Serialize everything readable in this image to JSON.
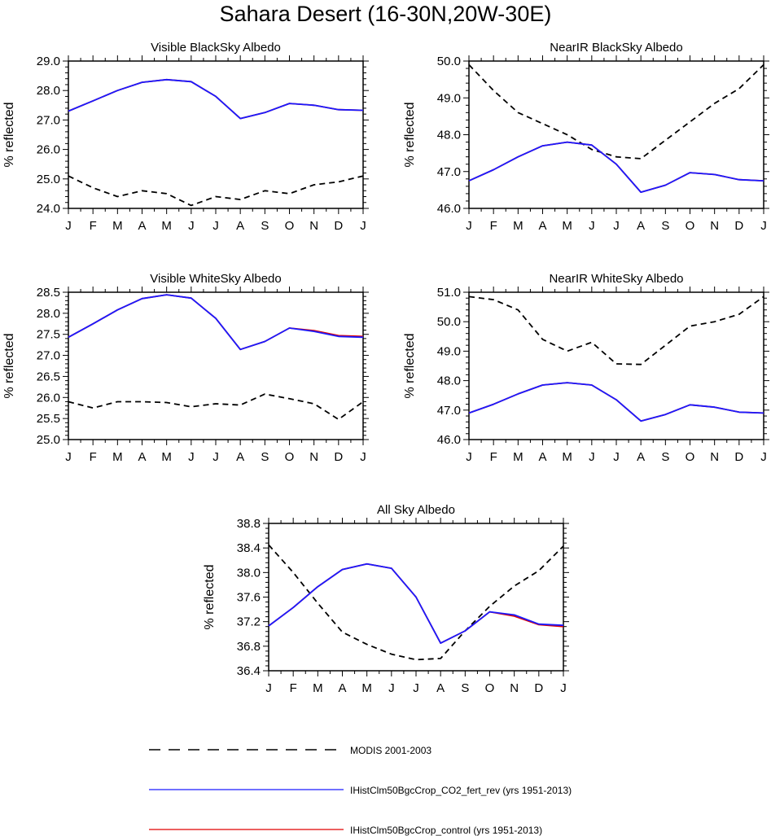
{
  "title": "Sahara Desert (16-30N,20W-30E)",
  "month_labels": [
    "J",
    "F",
    "M",
    "A",
    "M",
    "J",
    "J",
    "A",
    "S",
    "O",
    "N",
    "D",
    "J"
  ],
  "colors": {
    "modis": "#000000",
    "co2_fert_rev": "#1a1aff",
    "control": "#e00000"
  },
  "legend": [
    {
      "key": "modis",
      "label": "MODIS 2001-2003",
      "style": "dashed"
    },
    {
      "key": "co2_fert_rev",
      "label": "IHistClm50BgcCrop_CO2_fert_rev (yrs 1951-2013)",
      "style": "solid"
    },
    {
      "key": "control",
      "label": "IHistClm50BgcCrop_control (yrs 1951-2013)",
      "style": "solid"
    }
  ],
  "chart_data": [
    {
      "type": "line",
      "title": "Visible BlackSky Albedo",
      "ylabel": "% reflected",
      "ylim": [
        24.0,
        29.0
      ],
      "yticks": [
        24.0,
        25.0,
        26.0,
        27.0,
        28.0,
        29.0
      ],
      "tick_decimals": 1,
      "series": [
        {
          "key": "modis",
          "values": [
            25.1,
            24.7,
            24.4,
            24.6,
            24.5,
            24.1,
            24.4,
            24.3,
            24.6,
            24.5,
            24.8,
            24.9,
            25.1
          ]
        },
        {
          "key": "control",
          "values": [
            27.3,
            27.65,
            28.0,
            28.28,
            28.37,
            28.3,
            27.8,
            27.05,
            27.25,
            27.56,
            27.5,
            27.35,
            27.33
          ]
        },
        {
          "key": "co2_fert_rev",
          "values": [
            27.3,
            27.65,
            28.0,
            28.28,
            28.37,
            28.3,
            27.8,
            27.05,
            27.25,
            27.56,
            27.5,
            27.35,
            27.33
          ]
        }
      ]
    },
    {
      "type": "line",
      "title": "NearIR BlackSky Albedo",
      "ylabel": "% reflected",
      "ylim": [
        46.0,
        50.0
      ],
      "yticks": [
        46.0,
        47.0,
        48.0,
        49.0,
        50.0
      ],
      "tick_decimals": 1,
      "series": [
        {
          "key": "modis",
          "values": [
            49.9,
            49.2,
            48.6,
            48.3,
            48.0,
            47.6,
            47.4,
            47.35,
            47.85,
            48.35,
            48.85,
            49.25,
            49.9
          ]
        },
        {
          "key": "control",
          "values": [
            46.75,
            47.05,
            47.4,
            47.7,
            47.8,
            47.72,
            47.2,
            46.44,
            46.63,
            46.97,
            46.92,
            46.78,
            46.75
          ]
        },
        {
          "key": "co2_fert_rev",
          "values": [
            46.75,
            47.05,
            47.4,
            47.7,
            47.8,
            47.72,
            47.2,
            46.44,
            46.63,
            46.97,
            46.92,
            46.78,
            46.75
          ]
        }
      ]
    },
    {
      "type": "line",
      "title": "Visible WhiteSky Albedo",
      "ylabel": "% reflected",
      "ylim": [
        25.0,
        28.5
      ],
      "yticks": [
        25.0,
        25.5,
        26.0,
        26.5,
        27.0,
        27.5,
        28.0,
        28.5
      ],
      "tick_decimals": 1,
      "series": [
        {
          "key": "modis",
          "values": [
            25.9,
            25.75,
            25.9,
            25.9,
            25.88,
            25.78,
            25.85,
            25.82,
            26.08,
            25.97,
            25.85,
            25.48,
            25.9
          ]
        },
        {
          "key": "control",
          "values": [
            27.43,
            27.75,
            28.08,
            28.35,
            28.44,
            28.36,
            27.88,
            27.14,
            27.33,
            27.65,
            27.59,
            27.47,
            27.45
          ]
        },
        {
          "key": "co2_fert_rev",
          "values": [
            27.43,
            27.75,
            28.08,
            28.35,
            28.44,
            28.36,
            27.88,
            27.14,
            27.33,
            27.65,
            27.57,
            27.45,
            27.43
          ]
        }
      ]
    },
    {
      "type": "line",
      "title": "NearIR WhiteSky Albedo",
      "ylabel": "% reflected",
      "ylim": [
        46.0,
        51.0
      ],
      "yticks": [
        46.0,
        47.0,
        48.0,
        49.0,
        50.0,
        51.0
      ],
      "tick_decimals": 1,
      "series": [
        {
          "key": "modis",
          "values": [
            50.85,
            50.75,
            50.4,
            49.4,
            49.0,
            49.3,
            48.57,
            48.55,
            49.2,
            49.85,
            50.0,
            50.25,
            50.85
          ]
        },
        {
          "key": "control",
          "values": [
            46.9,
            47.2,
            47.55,
            47.85,
            47.93,
            47.85,
            47.35,
            46.63,
            46.85,
            47.18,
            47.1,
            46.93,
            46.9
          ]
        },
        {
          "key": "co2_fert_rev",
          "values": [
            46.9,
            47.2,
            47.55,
            47.85,
            47.93,
            47.85,
            47.35,
            46.63,
            46.85,
            47.18,
            47.1,
            46.93,
            46.9
          ]
        }
      ]
    },
    {
      "type": "line",
      "title": "All Sky Albedo",
      "ylabel": "% reflected",
      "ylim": [
        36.4,
        38.8
      ],
      "yticks": [
        36.4,
        36.8,
        37.2,
        37.6,
        38.0,
        38.4,
        38.8
      ],
      "tick_decimals": 1,
      "series": [
        {
          "key": "modis",
          "values": [
            38.45,
            38.0,
            37.5,
            37.03,
            36.83,
            36.67,
            36.58,
            36.6,
            37.05,
            37.45,
            37.78,
            38.03,
            38.43
          ]
        },
        {
          "key": "control",
          "values": [
            37.13,
            37.43,
            37.77,
            38.05,
            38.14,
            38.07,
            37.6,
            36.85,
            37.05,
            37.36,
            37.29,
            37.15,
            37.12
          ]
        },
        {
          "key": "co2_fert_rev",
          "values": [
            37.13,
            37.43,
            37.77,
            38.05,
            38.14,
            38.07,
            37.6,
            36.85,
            37.05,
            37.36,
            37.31,
            37.16,
            37.14
          ]
        }
      ]
    }
  ]
}
